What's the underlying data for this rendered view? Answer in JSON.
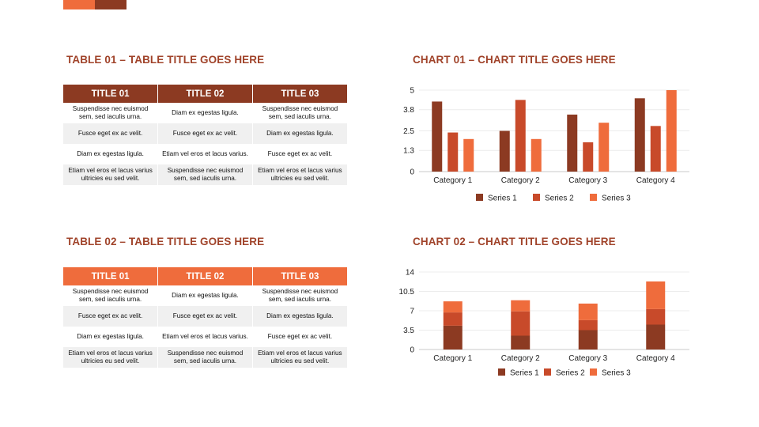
{
  "colors": {
    "series1": "#8c3a22",
    "series2": "#c84a2a",
    "series3": "#ef6c3c",
    "title": "#a0432a"
  },
  "table1": {
    "title": "TABLE 01 – TABLE TITLE GOES HERE",
    "headers": [
      "TITLE 01",
      "TITLE 02",
      "TITLE 03"
    ],
    "rows": [
      [
        "Suspendisse nec euismod sem, sed iaculis urna.",
        "Diam ex egestas ligula.",
        "Suspendisse nec euismod sem, sed iaculis urna."
      ],
      [
        "Fusce eget ex ac velit.",
        "Fusce eget ex ac velit.",
        "Diam ex egestas ligula."
      ],
      [
        "Diam ex egestas ligula.",
        "Etiam vel eros et lacus varius.",
        "Fusce eget ex ac velit."
      ],
      [
        "Etiam vel eros et lacus varius ultricies eu sed velit.",
        "Suspendisse nec euismod sem, sed iaculis urna.",
        "Etiam vel eros et lacus varius ultricies eu sed velit."
      ]
    ]
  },
  "table2": {
    "title": "TABLE 02 – TABLE TITLE GOES HERE",
    "headers": [
      "TITLE 01",
      "TITLE 02",
      "TITLE 03"
    ],
    "rows": [
      [
        "Suspendisse nec euismod sem, sed iaculis urna.",
        "Diam ex egestas ligula.",
        "Suspendisse nec euismod sem, sed iaculis urna."
      ],
      [
        "Fusce eget ex ac velit.",
        "Fusce eget ex ac velit.",
        "Diam ex egestas ligula."
      ],
      [
        "Diam ex egestas ligula.",
        "Etiam vel eros et lacus varius.",
        "Fusce eget ex ac velit."
      ],
      [
        "Etiam vel eros et lacus varius ultricies eu sed velit.",
        "Suspendisse nec euismod sem, sed iaculis urna.",
        "Etiam vel eros et lacus varius ultricies eu sed velit."
      ]
    ]
  },
  "chart1_title": "CHART 01 – CHART TITLE GOES HERE",
  "chart2_title": "CHART 02 – CHART TITLE GOES HERE",
  "chart_data": [
    {
      "type": "bar",
      "title": "CHART 01 – CHART TITLE GOES HERE",
      "categories": [
        "Category 1",
        "Category 2",
        "Category 3",
        "Category 4"
      ],
      "series": [
        {
          "name": "Series 1",
          "values": [
            4.3,
            2.5,
            3.5,
            4.5
          ]
        },
        {
          "name": "Series 2",
          "values": [
            2.4,
            4.4,
            1.8,
            2.8
          ]
        },
        {
          "name": "Series 3",
          "values": [
            2.0,
            2.0,
            3.0,
            5.0
          ]
        }
      ],
      "yticks": [
        "0",
        "1.3",
        "2.5",
        "3.8",
        "5"
      ],
      "ylim": [
        0,
        5
      ],
      "grid": true,
      "legend": "bottom"
    },
    {
      "type": "bar",
      "stacked": true,
      "title": "CHART 02 – CHART TITLE GOES HERE",
      "categories": [
        "Category 1",
        "Category 2",
        "Category 3",
        "Category 4"
      ],
      "series": [
        {
          "name": "Series 1",
          "values": [
            4.3,
            2.5,
            3.5,
            4.5
          ]
        },
        {
          "name": "Series 2",
          "values": [
            2.4,
            4.4,
            1.8,
            2.8
          ]
        },
        {
          "name": "Series 3",
          "values": [
            2.0,
            2.0,
            3.0,
            5.0
          ]
        }
      ],
      "yticks": [
        "0",
        "3.5",
        "7",
        "10.5",
        "14"
      ],
      "ylim": [
        0,
        14
      ],
      "grid": true,
      "legend": "bottom"
    }
  ]
}
